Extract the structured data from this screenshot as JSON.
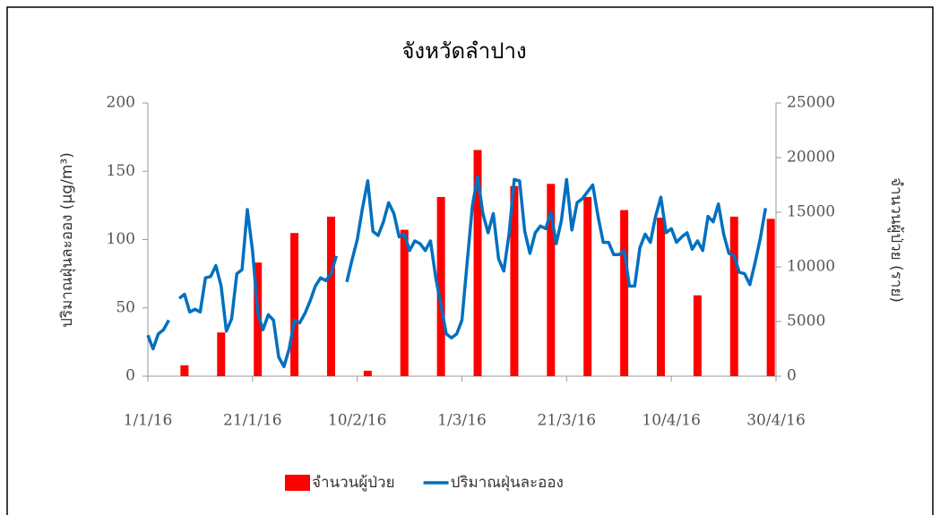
{
  "chart_data": {
    "type": "bar-line",
    "title": "จังหวัดลำปาง",
    "y_label": "ปริมาณฝุ่นละออง (µg/m³)",
    "y2_label": "จำนวนผู้ป่วย (ราย)",
    "xlim": [
      "1/1/16",
      "30/4/16"
    ],
    "xticks": [
      "1/1/16",
      "21/1/16",
      "10/2/16",
      "1/3/16",
      "21/3/16",
      "10/4/16",
      "30/4/16"
    ],
    "ylim": [
      0,
      200
    ],
    "yticks": [
      0,
      50,
      100,
      150,
      200
    ],
    "y2lim": [
      0,
      25000
    ],
    "y2ticks": [
      0,
      5000,
      10000,
      15000,
      20000,
      25000
    ],
    "legend": "bottom",
    "series": [
      {
        "name": "จำนวนผู้ป่วย",
        "type": "bar",
        "axis": "y2",
        "color": "#ff0000",
        "x": [
          "8/1/16",
          "15/1/16",
          "22/1/16",
          "29/1/16",
          "5/2/16",
          "12/2/16",
          "19/2/16",
          "26/2/16",
          "4/3/16",
          "11/3/16",
          "18/3/16",
          "25/3/16",
          "1/4/16",
          "8/4/16",
          "15/4/16",
          "22/4/16",
          "29/4/16"
        ],
        "values": [
          1000,
          4000,
          10400,
          13100,
          14600,
          500,
          13400,
          16400,
          20700,
          17400,
          17600,
          16400,
          15200,
          14500,
          7400,
          14600,
          14400
        ]
      },
      {
        "name": "ปริมาณฝุ่นละออง",
        "type": "line",
        "color": "#0070c0",
        "x": [
          "1/1/16",
          "2/1/16",
          "3/1/16",
          "4/1/16",
          "5/1/16",
          "6/1/16",
          "7/1/16",
          "8/1/16",
          "9/1/16",
          "10/1/16",
          "11/1/16",
          "12/1/16",
          "13/1/16",
          "14/1/16",
          "15/1/16",
          "16/1/16",
          "17/1/16",
          "18/1/16",
          "19/1/16",
          "20/1/16",
          "21/1/16",
          "22/1/16",
          "23/1/16",
          "24/1/16",
          "25/1/16",
          "26/1/16",
          "27/1/16",
          "28/1/16",
          "29/1/16",
          "30/1/16",
          "31/1/16",
          "1/2/16",
          "2/2/16",
          "3/2/16",
          "4/2/16",
          "5/2/16",
          "6/2/16",
          "7/2/16",
          "8/2/16",
          "9/2/16",
          "10/2/16",
          "11/2/16",
          "12/2/16",
          "13/2/16",
          "14/2/16",
          "15/2/16",
          "16/2/16",
          "17/2/16",
          "18/2/16",
          "19/2/16",
          "20/2/16",
          "21/2/16",
          "22/2/16",
          "23/2/16",
          "24/2/16",
          "25/2/16",
          "26/2/16",
          "27/2/16",
          "28/2/16",
          "29/2/16",
          "1/3/16",
          "2/3/16",
          "3/3/16",
          "4/3/16",
          "5/3/16",
          "6/3/16",
          "7/3/16",
          "8/3/16",
          "9/3/16",
          "10/3/16",
          "11/3/16",
          "12/3/16",
          "13/3/16",
          "14/3/16",
          "15/3/16",
          "16/3/16",
          "17/3/16",
          "18/3/16",
          "19/3/16",
          "20/3/16",
          "21/3/16",
          "22/3/16",
          "23/3/16",
          "24/3/16",
          "25/3/16",
          "26/3/16",
          "27/3/16",
          "28/3/16",
          "29/3/16",
          "30/3/16",
          "31/3/16",
          "1/4/16",
          "2/4/16",
          "3/4/16",
          "4/4/16",
          "5/4/16",
          "6/4/16",
          "7/4/16",
          "8/4/16",
          "9/4/16",
          "10/4/16",
          "11/4/16",
          "12/4/16",
          "13/4/16",
          "14/4/16",
          "15/4/16",
          "16/4/16",
          "17/4/16",
          "18/4/16",
          "19/4/16",
          "20/4/16",
          "21/4/16",
          "22/4/16",
          "23/4/16",
          "24/4/16",
          "25/4/16",
          "26/4/16",
          "27/4/16",
          "28/4/16"
        ],
        "values": [
          30,
          20,
          31,
          34,
          41,
          null,
          57,
          60,
          47,
          49,
          47,
          72,
          73,
          81,
          66,
          33,
          42,
          75,
          78,
          122,
          92,
          46,
          34,
          45,
          41,
          14,
          7,
          20,
          41,
          39,
          46,
          55,
          66,
          72,
          70,
          75,
          88,
          null,
          69,
          85,
          100,
          123,
          143,
          106,
          103,
          113,
          127,
          119,
          102,
          104,
          92,
          99,
          97,
          92,
          99,
          72,
          52,
          31,
          28,
          31,
          41,
          83,
          125,
          146,
          119,
          105,
          119,
          86,
          77,
          104,
          144,
          143,
          106,
          90,
          105,
          110,
          108,
          120,
          97,
          114,
          144,
          107,
          127,
          130,
          135,
          140,
          117,
          98,
          98,
          89,
          89,
          92,
          66,
          66,
          94,
          104,
          98,
          117,
          131,
          105,
          108,
          98,
          102,
          105,
          93,
          99,
          92,
          117,
          113,
          126,
          104,
          90,
          88,
          76,
          75,
          67,
          83,
          101,
          123
        ]
      }
    ]
  }
}
